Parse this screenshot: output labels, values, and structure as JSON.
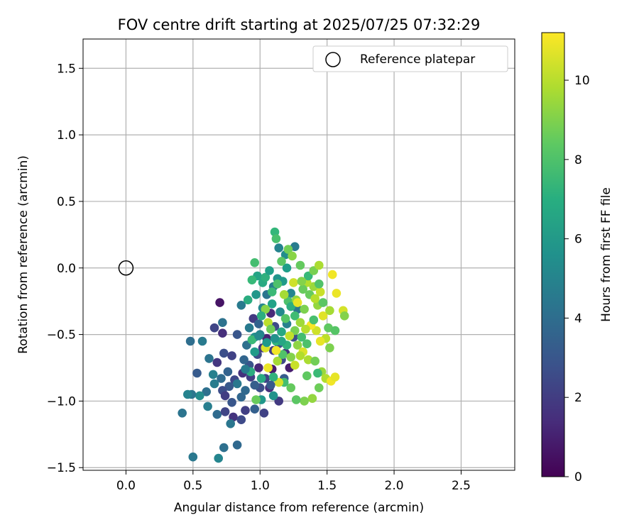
{
  "chart_data": {
    "type": "scatter",
    "title": "FOV centre drift starting at 2025/07/25 07:32:29",
    "xlabel": "Angular distance from reference (arcmin)",
    "ylabel": "Rotation from reference (arcmin)",
    "xlim": [
      -0.32,
      2.9
    ],
    "ylim": [
      -1.52,
      1.72
    ],
    "xticks": [
      0.0,
      0.5,
      1.0,
      1.5,
      2.0,
      2.5
    ],
    "xtick_labels": [
      "0.0",
      "0.5",
      "1.0",
      "1.5",
      "2.0",
      "2.5"
    ],
    "yticks": [
      -1.5,
      -1.0,
      -0.5,
      0.0,
      0.5,
      1.0,
      1.5
    ],
    "ytick_labels": [
      "−1.5",
      "−1.0",
      "−0.5",
      "0.0",
      "0.5",
      "1.0",
      "1.5"
    ],
    "grid": true,
    "legend": {
      "position": "top-right",
      "label": "Reference platepar"
    },
    "reference_point": {
      "x": 0.0,
      "y": 0.0,
      "marker": "open-circle"
    },
    "colorbar": {
      "label": "Hours from first FF file",
      "range": [
        0,
        11.2
      ],
      "ticks": [
        0,
        2,
        4,
        6,
        8,
        10
      ],
      "tick_labels": [
        "0",
        "2",
        "4",
        "6",
        "8",
        "10"
      ],
      "colormap": "viridis"
    },
    "point_fields": [
      "x (arcmin)",
      "y (arcmin)",
      "hours from first FF file"
    ],
    "points": [
      [
        0.7,
        -0.26,
        0.6
      ],
      [
        0.66,
        -0.45,
        2.3
      ],
      [
        0.72,
        -0.49,
        1.5
      ],
      [
        0.72,
        -0.41,
        4.2
      ],
      [
        0.95,
        -0.38,
        1.9
      ],
      [
        0.86,
        -0.28,
        4.6
      ],
      [
        0.83,
        -0.5,
        3.0
      ],
      [
        0.48,
        -0.55,
        4.0
      ],
      [
        0.73,
        -0.64,
        2.7
      ],
      [
        0.79,
        -0.66,
        2.2
      ],
      [
        0.68,
        -0.71,
        1.8
      ],
      [
        0.62,
        -0.68,
        4.3
      ],
      [
        0.57,
        -0.55,
        4.6
      ],
      [
        0.53,
        -0.79,
        3.2
      ],
      [
        0.65,
        -0.8,
        4.9
      ],
      [
        0.71,
        -0.83,
        3.9
      ],
      [
        0.76,
        -0.78,
        3.5
      ],
      [
        0.81,
        -0.84,
        2.4
      ],
      [
        0.87,
        -0.79,
        1.6
      ],
      [
        0.92,
        -0.73,
        2.9
      ],
      [
        0.88,
        -0.69,
        3.6
      ],
      [
        0.9,
        -0.58,
        4.1
      ],
      [
        0.98,
        -0.65,
        2.6
      ],
      [
        1.02,
        -0.6,
        1.8
      ],
      [
        0.99,
        -0.75,
        1.2
      ],
      [
        1.04,
        -0.83,
        2.2
      ],
      [
        1.0,
        -0.9,
        2.7
      ],
      [
        0.96,
        -0.88,
        3.3
      ],
      [
        0.89,
        -0.92,
        3.8
      ],
      [
        0.83,
        -0.87,
        4.5
      ],
      [
        0.77,
        -0.89,
        3.1
      ],
      [
        0.72,
        -0.92,
        2.6
      ],
      [
        0.66,
        -0.87,
        4.7
      ],
      [
        0.6,
        -0.93,
        4.1
      ],
      [
        0.55,
        -0.96,
        5.4
      ],
      [
        0.49,
        -0.95,
        4.4
      ],
      [
        0.46,
        -0.95,
        5.0
      ],
      [
        0.42,
        -1.09,
        4.3
      ],
      [
        0.61,
        -1.04,
        4.8
      ],
      [
        0.68,
        -1.1,
        3.9
      ],
      [
        0.74,
        -0.96,
        2.0
      ],
      [
        0.79,
        -1.01,
        3.0
      ],
      [
        0.74,
        -1.08,
        2.3
      ],
      [
        0.8,
        -1.12,
        1.7
      ],
      [
        0.86,
        -1.14,
        2.5
      ],
      [
        0.89,
        -1.07,
        2.1
      ],
      [
        0.96,
        -1.06,
        3.4
      ],
      [
        1.03,
        -1.09,
        2.2
      ],
      [
        1.01,
        -0.99,
        5.9
      ],
      [
        0.78,
        -1.17,
        4.4
      ],
      [
        0.73,
        -1.35,
        4.1
      ],
      [
        0.69,
        -1.43,
        5.1
      ],
      [
        0.83,
        -1.33,
        3.8
      ],
      [
        0.5,
        -1.42,
        4.5
      ],
      [
        0.86,
        -0.97,
        3.7
      ],
      [
        0.93,
        -0.82,
        2.1
      ],
      [
        1.07,
        -0.9,
        1.5
      ],
      [
        1.09,
        -0.76,
        0.8
      ],
      [
        1.05,
        -0.53,
        1.1
      ],
      [
        1.11,
        -0.44,
        2.5
      ],
      [
        1.08,
        -0.34,
        1.3
      ],
      [
        1.1,
        -0.62,
        2.0
      ],
      [
        1.14,
        -0.57,
        2.8
      ],
      [
        1.19,
        -0.64,
        1.6
      ],
      [
        1.16,
        -0.69,
        2.4
      ],
      [
        1.22,
        -0.75,
        0.9
      ],
      [
        1.14,
        -1.0,
        1.9
      ],
      [
        1.18,
        -0.83,
        3.2
      ],
      [
        1.25,
        -0.52,
        2.6
      ],
      [
        1.0,
        -0.5,
        4.9
      ],
      [
        0.96,
        -0.52,
        5.6
      ],
      [
        0.92,
        -0.45,
        4.6
      ],
      [
        0.99,
        -0.42,
        3.5
      ],
      [
        1.02,
        -0.3,
        5.2
      ],
      [
        1.05,
        -0.2,
        4.3
      ],
      [
        1.1,
        -0.14,
        4.8
      ],
      [
        1.17,
        -0.1,
        6.1
      ],
      [
        1.14,
        0.15,
        5.0
      ],
      [
        1.19,
        0.1,
        5.5
      ],
      [
        1.26,
        0.16,
        4.7
      ],
      [
        1.13,
        -0.08,
        5.8
      ],
      [
        1.2,
        0.0,
        6.2
      ],
      [
        1.23,
        -0.19,
        5.1
      ],
      [
        1.28,
        -0.31,
        4.4
      ],
      [
        1.15,
        -0.33,
        5.3
      ],
      [
        1.2,
        -0.42,
        4.9
      ],
      [
        1.09,
        -0.27,
        6.4
      ],
      [
        1.02,
        -0.11,
        6.8
      ],
      [
        0.97,
        -0.2,
        5.9
      ],
      [
        0.91,
        -0.24,
        6.9
      ],
      [
        0.98,
        -0.06,
        6.5
      ],
      [
        0.94,
        -0.09,
        7.5
      ],
      [
        0.96,
        0.04,
        7.8
      ],
      [
        1.04,
        -0.07,
        7.1
      ],
      [
        1.07,
        -0.02,
        6.3
      ],
      [
        1.11,
        0.27,
        7.4
      ],
      [
        1.12,
        0.22,
        7.9
      ],
      [
        1.16,
        0.05,
        8.3
      ],
      [
        1.21,
        0.14,
        8.8
      ],
      [
        1.24,
        0.09,
        9.2
      ],
      [
        1.3,
        0.02,
        8.5
      ],
      [
        1.21,
        -0.25,
        8.0
      ],
      [
        1.26,
        -0.36,
        7.7
      ],
      [
        1.33,
        -0.31,
        9.0
      ],
      [
        1.37,
        -0.2,
        8.6
      ],
      [
        1.4,
        -0.14,
        9.5
      ],
      [
        1.35,
        -0.11,
        9.9
      ],
      [
        1.45,
        -0.18,
        10.3
      ],
      [
        1.43,
        -0.28,
        9.4
      ],
      [
        1.47,
        -0.36,
        10.7
      ],
      [
        1.52,
        -0.32,
        9.7
      ],
      [
        1.54,
        -0.05,
        11.0
      ],
      [
        1.57,
        -0.19,
        10.9
      ],
      [
        1.62,
        -0.32,
        10.5
      ],
      [
        1.63,
        -0.36,
        9.1
      ],
      [
        1.51,
        -0.45,
        8.4
      ],
      [
        1.56,
        -0.47,
        8.2
      ],
      [
        1.49,
        -0.53,
        10.1
      ],
      [
        1.52,
        -0.6,
        9.0
      ],
      [
        1.45,
        -0.55,
        10.8
      ],
      [
        1.42,
        -0.47,
        10.4
      ],
      [
        1.38,
        -0.43,
        11.1
      ],
      [
        1.34,
        -0.46,
        10.0
      ],
      [
        1.3,
        -0.41,
        9.6
      ],
      [
        1.26,
        -0.47,
        8.9
      ],
      [
        1.22,
        -0.51,
        10.2
      ],
      [
        1.28,
        -0.58,
        9.3
      ],
      [
        1.32,
        -0.63,
        10.6
      ],
      [
        1.36,
        -0.69,
        9.8
      ],
      [
        1.41,
        -0.7,
        8.8
      ],
      [
        1.46,
        -0.78,
        9.5
      ],
      [
        1.49,
        -0.83,
        9.9
      ],
      [
        1.53,
        -0.85,
        11.0
      ],
      [
        1.56,
        -0.82,
        10.8
      ],
      [
        1.44,
        -0.9,
        8.7
      ],
      [
        1.39,
        -0.98,
        9.4
      ],
      [
        1.33,
        -1.0,
        9.0
      ],
      [
        1.27,
        -0.99,
        8.3
      ],
      [
        1.23,
        -0.9,
        8.5
      ],
      [
        1.18,
        -0.86,
        7.8
      ],
      [
        1.14,
        -0.86,
        10.5
      ],
      [
        1.1,
        -0.82,
        7.2
      ],
      [
        1.06,
        -0.75,
        10.9
      ],
      [
        1.13,
        -0.7,
        9.7
      ],
      [
        1.17,
        -0.65,
        8.1
      ],
      [
        1.23,
        -0.67,
        9.1
      ],
      [
        1.26,
        -0.73,
        10.3
      ],
      [
        1.3,
        -0.66,
        9.9
      ],
      [
        1.35,
        -0.81,
        8.4
      ],
      [
        1.43,
        -0.79,
        7.6
      ],
      [
        1.04,
        -0.6,
        10.6
      ],
      [
        1.06,
        -0.41,
        10.1
      ],
      [
        1.04,
        -0.31,
        9.2
      ],
      [
        1.08,
        -0.46,
        8.7
      ],
      [
        1.12,
        -0.55,
        7.3
      ],
      [
        1.16,
        -0.48,
        6.7
      ],
      [
        1.19,
        -0.38,
        8.2
      ],
      [
        1.23,
        -0.29,
        7.0
      ],
      [
        1.27,
        -0.24,
        9.4
      ],
      [
        1.32,
        -0.16,
        8.6
      ],
      [
        1.36,
        -0.06,
        7.5
      ],
      [
        1.4,
        -0.02,
        8.9
      ],
      [
        1.44,
        0.02,
        9.8
      ],
      [
        1.31,
        -0.52,
        7.8
      ],
      [
        1.35,
        -0.57,
        8.0
      ],
      [
        1.2,
        -0.58,
        7.2
      ],
      [
        1.16,
        -0.55,
        6.6
      ],
      [
        1.11,
        -0.53,
        5.7
      ],
      [
        1.05,
        -0.56,
        6.0
      ],
      [
        0.94,
        -0.54,
        7.6
      ],
      [
        0.99,
        -0.51,
        5.3
      ],
      [
        1.28,
        -0.26,
        10.8
      ],
      [
        1.4,
        -0.39,
        7.9
      ],
      [
        1.47,
        -0.26,
        8.3
      ],
      [
        1.44,
        -0.12,
        8.1
      ],
      [
        1.41,
        -0.23,
        10.0
      ],
      [
        1.18,
        -0.2,
        9.7
      ],
      [
        1.13,
        -0.12,
        8.0
      ],
      [
        0.93,
        -0.78,
        6.9
      ],
      [
        0.97,
        -0.99,
        8.6
      ],
      [
        1.1,
        -0.96,
        5.7
      ],
      [
        1.01,
        -0.83,
        6.8
      ],
      [
        1.08,
        -0.88,
        3.1
      ],
      [
        1.12,
        -0.62,
        11.0
      ],
      [
        1.25,
        -0.11,
        10.4
      ],
      [
        1.31,
        -0.1,
        9.1
      ],
      [
        1.01,
        -0.36,
        7.0
      ],
      [
        1.09,
        -0.18,
        7.6
      ],
      [
        0.89,
        -0.76,
        4.7
      ],
      [
        0.96,
        -0.63,
        6.1
      ]
    ]
  }
}
